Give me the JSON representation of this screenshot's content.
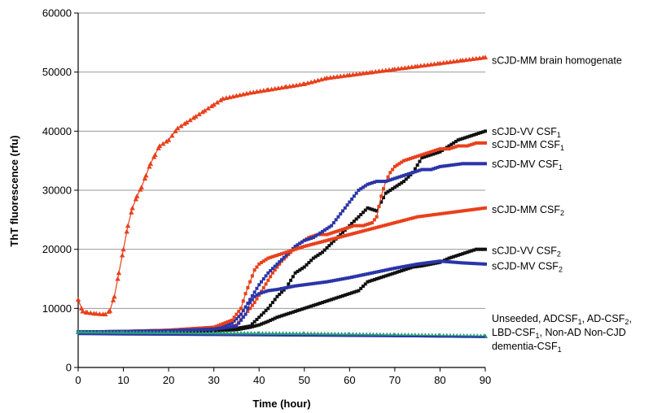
{
  "chart_data": {
    "type": "line",
    "xlabel": "Time (hour)",
    "ylabel": "ThT fluorescence (rfu)",
    "xlim": [
      0,
      90
    ],
    "ylim": [
      0,
      60000
    ],
    "xticks": [
      "0",
      "10",
      "20",
      "30",
      "40",
      "50",
      "60",
      "70",
      "80",
      "90"
    ],
    "yticks": [
      "0",
      "10000",
      "20000",
      "30000",
      "40000",
      "50000",
      "60000"
    ],
    "grid": "horizontal",
    "legend": "inline labels at right",
    "series": [
      {
        "name": "sCJD-MM brain homogenate",
        "color": "#e8401c",
        "marker": "triangle",
        "label_y": 52000,
        "x": [
          0,
          1,
          2,
          4,
          6,
          7,
          8,
          9,
          10,
          11,
          12,
          13,
          14,
          15,
          16,
          17,
          18,
          20,
          22,
          24,
          26,
          28,
          30,
          32,
          35,
          38,
          42,
          46,
          50,
          55,
          60,
          65,
          70,
          75,
          80,
          85,
          90
        ],
        "y": [
          11500,
          9500,
          9300,
          9100,
          9000,
          9600,
          12000,
          16000,
          20000,
          24000,
          27000,
          29000,
          30500,
          32500,
          34500,
          36000,
          37500,
          38500,
          40500,
          41500,
          42500,
          43500,
          44500,
          45500,
          46000,
          46500,
          47000,
          47500,
          48000,
          49000,
          49500,
          50000,
          50500,
          51000,
          51500,
          52000,
          52500
        ]
      },
      {
        "name": "sCJD-VV CSF",
        "sub": "1",
        "color": "#111111",
        "marker": "square",
        "label_y": 40000,
        "x": [
          0,
          10,
          20,
          30,
          35,
          38,
          40,
          42,
          44,
          46,
          48,
          50,
          52,
          54,
          56,
          58,
          60,
          62,
          64,
          66,
          68,
          70,
          72,
          74,
          76,
          78,
          80,
          82,
          84,
          86,
          88,
          90
        ],
        "y": [
          6000,
          6000,
          6200,
          6400,
          6600,
          7000,
          8500,
          10000,
          12000,
          13500,
          16000,
          17000,
          18500,
          19500,
          21000,
          22500,
          24000,
          25500,
          27000,
          26500,
          29500,
          30500,
          31500,
          33000,
          35500,
          36000,
          36500,
          37500,
          38500,
          39000,
          39500,
          40000
        ]
      },
      {
        "name": "sCJD-MM CSF",
        "sub": "1",
        "color": "#e8401c",
        "marker": "square",
        "label_y": 37800,
        "x": [
          0,
          10,
          20,
          30,
          33,
          35,
          37,
          39,
          41,
          43,
          45,
          47,
          49,
          51,
          53,
          55,
          57,
          59,
          61,
          63,
          65,
          66,
          67,
          68,
          69,
          70,
          72,
          74,
          76,
          78,
          80,
          82,
          84,
          86,
          88,
          90
        ],
        "y": [
          6000,
          6000,
          6100,
          6300,
          6600,
          7200,
          9000,
          11000,
          13500,
          16000,
          18000,
          19500,
          21000,
          22000,
          22500,
          22500,
          23000,
          23500,
          24000,
          24000,
          24500,
          25500,
          29000,
          31500,
          33000,
          34000,
          35000,
          35500,
          36000,
          36500,
          37000,
          37000,
          37500,
          37500,
          38000,
          38000
        ]
      },
      {
        "name": "sCJD-MV CSF",
        "sub": "1",
        "color": "#2b35a8",
        "marker": "square",
        "label_y": 34500,
        "x": [
          0,
          10,
          20,
          30,
          34,
          36,
          38,
          40,
          42,
          44,
          46,
          48,
          50,
          52,
          54,
          56,
          58,
          60,
          62,
          64,
          66,
          68,
          70,
          72,
          74,
          76,
          78,
          80,
          85,
          90
        ],
        "y": [
          6000,
          6100,
          6300,
          6800,
          7500,
          9000,
          11500,
          14000,
          16000,
          17500,
          19000,
          20500,
          21500,
          22000,
          23000,
          24000,
          26000,
          28000,
          30000,
          31000,
          31500,
          31500,
          32000,
          32500,
          33000,
          33500,
          33500,
          34000,
          34500,
          34500
        ]
      },
      {
        "name": "sCJD-MM CSF",
        "sub": "2",
        "color": "#e8401c",
        "marker": "square",
        "label_y": 26800,
        "x": [
          0,
          10,
          20,
          30,
          34,
          36,
          37,
          38,
          39,
          40,
          41,
          42,
          44,
          46,
          48,
          50,
          55,
          60,
          65,
          70,
          75,
          80,
          85,
          90
        ],
        "y": [
          6000,
          6100,
          6300,
          6800,
          8000,
          10000,
          12500,
          14500,
          16500,
          17500,
          18000,
          18500,
          19000,
          19500,
          20000,
          20500,
          21500,
          22500,
          23500,
          24500,
          25500,
          26000,
          26500,
          27000
        ]
      },
      {
        "name": "sCJD-VV CSF",
        "sub": "2",
        "color": "#111111",
        "marker": "square",
        "label_y": 19800,
        "x": [
          0,
          10,
          20,
          30,
          35,
          38,
          40,
          42,
          44,
          46,
          48,
          50,
          52,
          54,
          56,
          58,
          60,
          62,
          64,
          66,
          68,
          70,
          72,
          74,
          76,
          78,
          80,
          82,
          84,
          86,
          88,
          90
        ],
        "y": [
          6000,
          6000,
          6100,
          6200,
          6400,
          6800,
          7200,
          7800,
          8500,
          9000,
          9500,
          10000,
          10500,
          11000,
          11500,
          12000,
          12500,
          13000,
          14500,
          15000,
          15500,
          16000,
          16500,
          17000,
          17200,
          17500,
          17800,
          18500,
          19000,
          19500,
          20000,
          20000
        ]
      },
      {
        "name": "sCJD-MV CSF",
        "sub": "2",
        "color": "#2b35a8",
        "marker": "square",
        "label_y": 17200,
        "x": [
          0,
          10,
          20,
          30,
          35,
          37,
          38,
          39,
          40,
          42,
          44,
          46,
          48,
          50,
          55,
          60,
          65,
          70,
          75,
          80,
          85,
          90
        ],
        "y": [
          6000,
          6100,
          6200,
          6500,
          7000,
          9000,
          11000,
          12000,
          12500,
          13000,
          13200,
          13500,
          13800,
          14000,
          14500,
          15200,
          16000,
          16800,
          17500,
          18000,
          17700,
          17500
        ]
      },
      {
        "name": "Unseeded, ADCSF",
        "label_lines": [
          {
            "t": "Unseeded, ADCSF",
            "s": "1",
            "t2": ", AD-CSF",
            "s2": "2",
            "t3": ","
          },
          {
            "t": "LBD-CSF",
            "s": "1",
            "t2": ", Non-AD Non-CJD",
            "s2": "",
            "t3": ""
          },
          {
            "t": "dementia-CSF",
            "s": "1",
            "t2": "",
            "s2": "",
            "t3": ""
          }
        ],
        "color": "#2a9d7a",
        "marker": "triangle",
        "label_y": 6200,
        "x": [
          0,
          5,
          10,
          20,
          30,
          40,
          50,
          60,
          70,
          80,
          90
        ],
        "y": [
          6000,
          5900,
          5900,
          5850,
          5800,
          5750,
          5700,
          5600,
          5500,
          5400,
          5300
        ]
      },
      {
        "name": "",
        "color": "#2b35a8",
        "marker": "line",
        "label_y": null,
        "x": [
          0,
          10,
          20,
          30,
          40,
          50,
          60,
          70,
          80,
          90
        ],
        "y": [
          5600,
          5550,
          5500,
          5450,
          5400,
          5350,
          5300,
          5250,
          5200,
          5150
        ]
      }
    ]
  }
}
